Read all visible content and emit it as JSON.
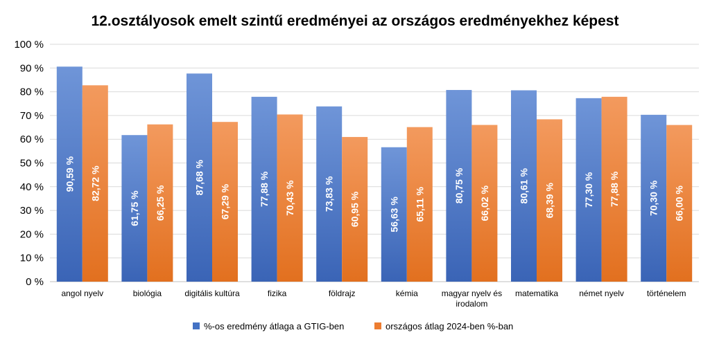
{
  "chart_data": {
    "type": "bar",
    "title": "12.osztályosok emelt szintű eredményei az országos eredményekhez képest",
    "categories": [
      [
        "angol nyelv"
      ],
      [
        "biológia"
      ],
      [
        "digitális kultúra"
      ],
      [
        "fizika"
      ],
      [
        "földrajz"
      ],
      [
        "kémia"
      ],
      [
        "magyar nyelv és",
        "irodalom"
      ],
      [
        "matematika"
      ],
      [
        "német nyelv"
      ],
      [
        "történelem"
      ]
    ],
    "series": [
      {
        "name": "%-os eredmény átlaga a GTIG-ben",
        "color": "#4472c4",
        "values": [
          90.59,
          61.75,
          87.68,
          77.88,
          73.83,
          56.63,
          80.75,
          80.61,
          77.3,
          70.3
        ],
        "labels": [
          "90,59 %",
          "61,75 %",
          "87,68 %",
          "77,88 %",
          "73,83 %",
          "56,63 %",
          "80,75 %",
          "80,61 %",
          "77,30 %",
          "70,30 %"
        ]
      },
      {
        "name": "országos átlag 2024-ben %-ban",
        "color": "#ed7d31",
        "values": [
          82.72,
          66.25,
          67.29,
          70.43,
          60.95,
          65.11,
          66.02,
          68.39,
          77.88,
          66.0
        ],
        "labels": [
          "82,72 %",
          "66,25 %",
          "67,29 %",
          "70,43 %",
          "60,95 %",
          "65,11 %",
          "66,02 %",
          "68,39 %",
          "77,88 %",
          "66,00 %"
        ]
      }
    ],
    "yticks": [
      "0 %",
      "10 %",
      "20 %",
      "30 %",
      "40 %",
      "50 %",
      "60 %",
      "70 %",
      "80 %",
      "90 %",
      "100 %"
    ],
    "ylim": [
      0,
      100
    ],
    "grid": true,
    "legend": "bottom"
  }
}
